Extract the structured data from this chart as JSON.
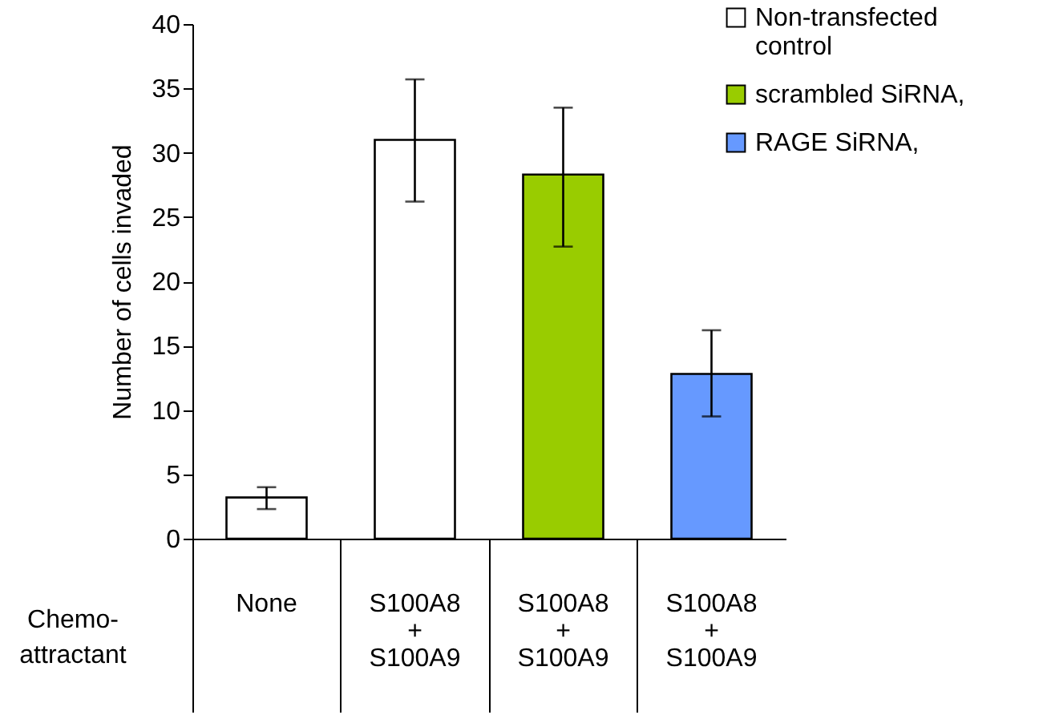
{
  "chart_data": {
    "type": "bar",
    "xlabel": "Chemo-attractant",
    "ylabel": "Number of cells invaded",
    "categories": [
      "None",
      "S100A8\n+\nS100A9",
      "S100A8\n+\nS100A9",
      "S100A8\n+\nS100A9"
    ],
    "series": [
      {
        "name": "Non-transfected control",
        "color": "#ffffff",
        "values": [
          3.2,
          31.0,
          null,
          null
        ],
        "errors": [
          [
            2.3,
            4.0
          ],
          [
            26.2,
            35.7
          ],
          null,
          null
        ]
      },
      {
        "name": "scrambled SiRNA,",
        "color": "#99cc00",
        "values": [
          null,
          null,
          28.3,
          null
        ],
        "errors": [
          null,
          null,
          [
            22.7,
            33.5
          ],
          null
        ]
      },
      {
        "name": "RAGE SiRNA,",
        "color": "#6699ff",
        "values": [
          null,
          null,
          null,
          12.8
        ],
        "errors": [
          null,
          null,
          null,
          [
            9.5,
            16.2
          ]
        ]
      }
    ],
    "ylim": [
      0,
      40
    ],
    "yticks": [
      0,
      5,
      10,
      15,
      20,
      25,
      30,
      35,
      40
    ],
    "grid": false,
    "legend": "top right"
  }
}
